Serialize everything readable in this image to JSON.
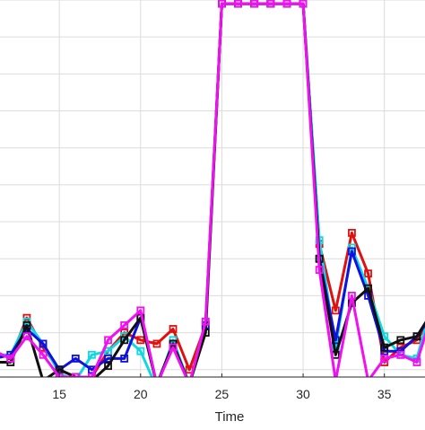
{
  "chart_data": {
    "type": "line",
    "xlabel": "Time",
    "ylabel": "",
    "title": "",
    "x_ticks": [
      15,
      20,
      25,
      30,
      35
    ],
    "xlim": [
      11.35,
      37.5
    ],
    "ylim": [
      -0.2,
      10.0
    ],
    "y_gridlines": [
      0,
      1,
      2,
      3,
      4,
      5,
      6,
      7,
      8,
      9,
      10
    ],
    "grid": true,
    "x": [
      11,
      12,
      13,
      14,
      15,
      16,
      17,
      18,
      19,
      20,
      21,
      22,
      23,
      24,
      25,
      26,
      27,
      28,
      29,
      30,
      31,
      32,
      33,
      34,
      35,
      36,
      37,
      38
    ],
    "series": [
      {
        "color": "#e01010",
        "values": [
          0.5,
          0.3,
          1.4,
          0.6,
          0.0,
          -0.2,
          -0.2,
          0.5,
          1.0,
          0.8,
          0.7,
          1.1,
          0.0,
          1.2,
          9.9,
          9.9,
          9.9,
          9.9,
          9.9,
          9.9,
          3.4,
          1.6,
          3.7,
          2.6,
          0.2,
          0.6,
          0.8,
          1.5
        ]
      },
      {
        "color": "#10d8e0",
        "values": [
          0.4,
          0.4,
          1.3,
          0.7,
          -0.1,
          -0.3,
          0.4,
          0.5,
          0.9,
          0.5,
          -0.5,
          0.8,
          -0.4,
          1.3,
          9.9,
          9.9,
          9.9,
          9.9,
          9.9,
          9.9,
          3.5,
          0.6,
          3.3,
          2.2,
          0.9,
          0.4,
          0.3,
          1.9
        ]
      },
      {
        "color": "#1010e0",
        "values": [
          0.3,
          0.4,
          1.1,
          0.7,
          0.0,
          0.3,
          0.0,
          0.3,
          0.3,
          1.4,
          -0.4,
          0.7,
          -0.4,
          1.2,
          9.9,
          9.9,
          9.9,
          9.9,
          9.9,
          9.9,
          3.0,
          0.8,
          3.2,
          2.0,
          0.5,
          0.5,
          0.9,
          1.5
        ]
      },
      {
        "color": "#101010",
        "values": [
          0.2,
          0.2,
          1.2,
          -0.3,
          0.0,
          -0.2,
          -0.3,
          0.1,
          0.8,
          1.4,
          -0.4,
          0.7,
          -0.4,
          1.0,
          9.9,
          9.9,
          9.9,
          9.9,
          9.9,
          9.9,
          3.0,
          0.4,
          1.8,
          2.2,
          0.6,
          0.8,
          0.9,
          1.6
        ]
      },
      {
        "color": "#f010f0",
        "values": [
          0.5,
          0.3,
          0.9,
          0.4,
          -0.2,
          -0.2,
          -0.2,
          0.8,
          1.2,
          1.6,
          -0.4,
          0.6,
          -0.4,
          1.3,
          9.9,
          9.9,
          9.9,
          9.9,
          9.9,
          9.9,
          2.7,
          -0.3,
          2.0,
          -0.3,
          0.3,
          0.4,
          0.2,
          1.6
        ]
      }
    ]
  }
}
